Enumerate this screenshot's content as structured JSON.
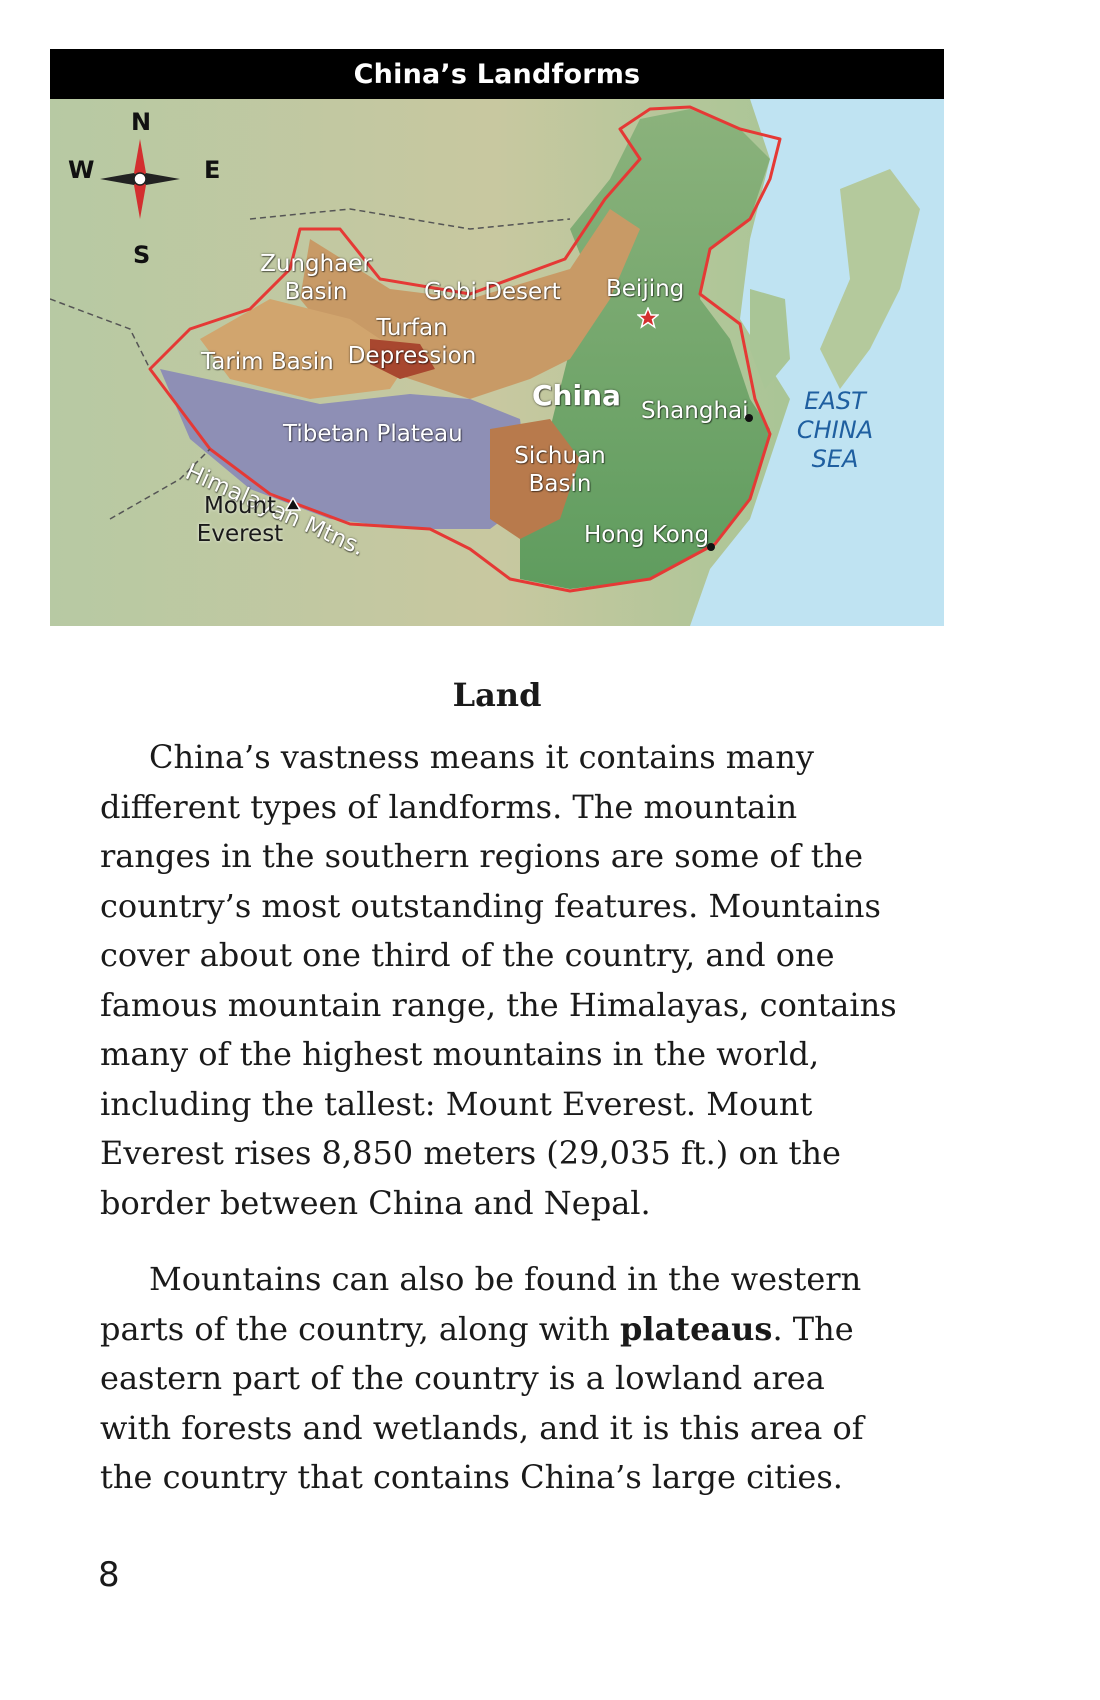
{
  "map": {
    "title": "China’s Landforms",
    "compass": {
      "n": "N",
      "s": "S",
      "e": "E",
      "w": "W"
    },
    "labels": {
      "zunghaer_1": "Zunghaer",
      "zunghaer_2": "Basin",
      "gobi": "Gobi Desert",
      "beijing": "Beijing",
      "turfan_1": "Turfan",
      "turfan_2": "Depression",
      "tarim": "Tarim Basin",
      "china": "China",
      "shanghai": "Shanghai",
      "sea_1": "EAST",
      "sea_2": "CHINA",
      "sea_3": "SEA",
      "tibetan": "Tibetan Plateau",
      "himalayan": "Himalayan Mtns.",
      "sichuan_1": "Sichuan",
      "sichuan_2": "Basin",
      "everest_1": "Mount",
      "everest_2": "Everest",
      "hongkong": "Hong Kong"
    },
    "colors": {
      "border": "#e53935",
      "ocean": "#bfe3f2",
      "lowland": "#6fa66a",
      "highland": "#8e8fb5",
      "desert": "#c89a66"
    }
  },
  "section": {
    "title": "Land"
  },
  "paragraphs": {
    "p1": "China’s vastness means it contains many different types of landforms. The mountain ranges in the southern regions are some of the country’s most outstanding features. Mountains cover about one third of the country, and one famous mountain range, the Himalayas, contains many of the highest mountains in the world, including the tallest: Mount Everest. Mount Everest rises 8,850 meters (29,035 ft.) on the border between China and Nepal.",
    "p2_before": "Mountains can also be found in the western parts of the country, along with ",
    "p2_bold": "plateaus",
    "p2_after": ". The eastern part of the country is a lowland area with forests and wetlands, and it is this area of the country that contains China’s large cities."
  },
  "page_number": "8"
}
